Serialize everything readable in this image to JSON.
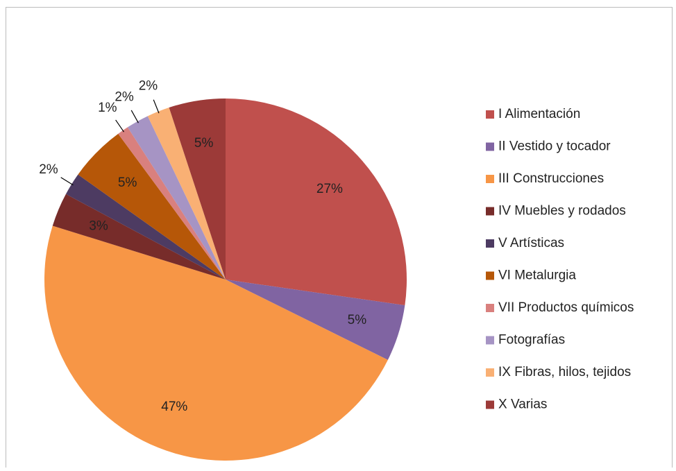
{
  "chart_data": {
    "type": "pie",
    "categories": [
      "I Alimentación",
      "II Vestido y tocador",
      "III Construcciones",
      "IV Muebles y rodados",
      "V Artísticas",
      "VI Metalurgia",
      "VII Productos químicos",
      "Fotografías",
      "IX Fibras, hilos, tejidos",
      "X Varias"
    ],
    "values": [
      27,
      5,
      47,
      3,
      2,
      5,
      1,
      2,
      2,
      5
    ],
    "value_labels": [
      "27%",
      "5%",
      "47%",
      "3%",
      "2%",
      "5%",
      "1%",
      "2%",
      "2%",
      "5%"
    ],
    "colors": [
      "#c0504d",
      "#8064a2",
      "#f79646",
      "#772c2a",
      "#4d3b62",
      "#b65708",
      "#d9807e",
      "#a694c4",
      "#f9b074",
      "#9c3a38"
    ],
    "legend": "right"
  }
}
